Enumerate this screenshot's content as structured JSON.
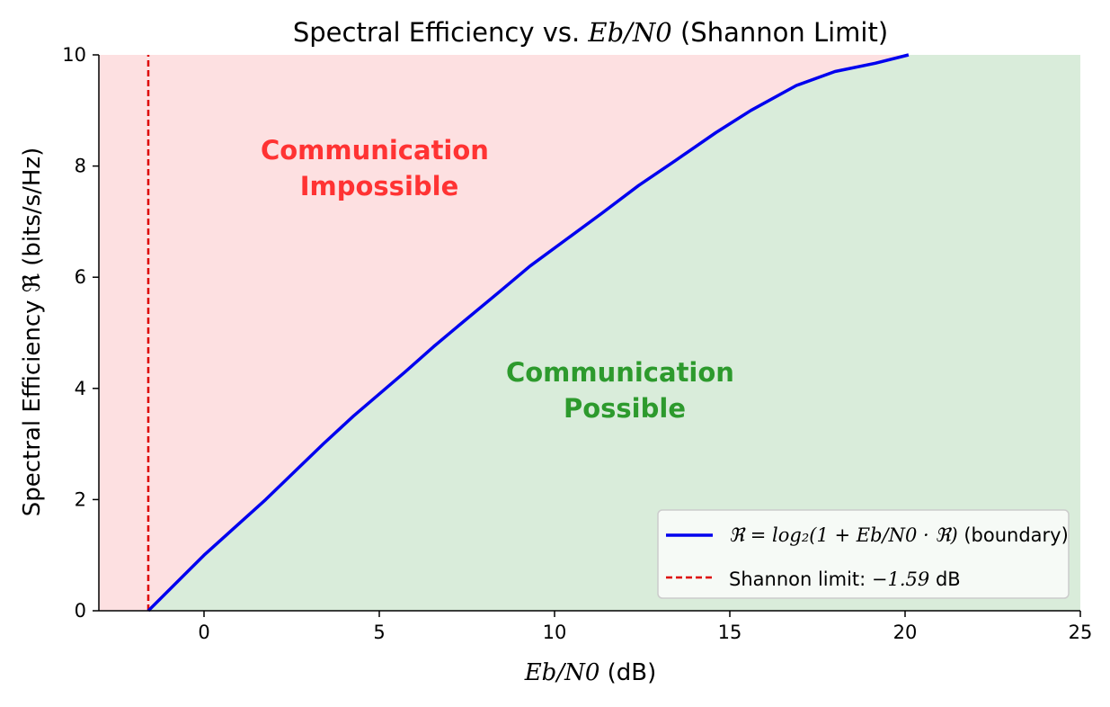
{
  "chart_data": {
    "type": "line",
    "title_prefix": "Spectral Efficiency vs. ",
    "title_math": "Eb/N0",
    "title_suffix": " (Shannon Limit)",
    "xlabel_math": "Eb/N0",
    "xlabel_suffix": " (dB)",
    "ylabel": "Spectral Efficiency ℜ (bits/s/Hz)",
    "xlim": [
      -3,
      25
    ],
    "ylim": [
      0,
      10
    ],
    "xticks": [
      0,
      5,
      10,
      15,
      20,
      25
    ],
    "yticks": [
      0,
      2,
      4,
      6,
      8,
      10
    ],
    "grid": false,
    "legend_position": "lower-right",
    "regions": [
      {
        "label_line1": "Communication",
        "label_line2": "Impossible",
        "color": "#ff3333",
        "fill": "#fde0e1"
      },
      {
        "label_line1": "Communication",
        "label_line2": "Possible",
        "color": "#2d9a2d",
        "fill": "#d9ecda"
      }
    ],
    "series": [
      {
        "name": "ℜ = log₂(1 + Eb/N0 · ℜ) (boundary)",
        "color": "#0000ee",
        "style": "solid",
        "x": [
          -1.59,
          0,
          1.76,
          3.4,
          4.26,
          5.74,
          6.55,
          7.4,
          8.45,
          9.3,
          10.38,
          11.35,
          12.4,
          13.45,
          14.6,
          15.6,
          16.9,
          18,
          19.15,
          20.1
        ],
        "y": [
          0,
          1,
          2,
          3,
          3.5,
          4.3,
          4.75,
          5.2,
          5.75,
          6.2,
          6.7,
          7.15,
          7.65,
          8.1,
          8.6,
          9.0,
          9.45,
          9.7,
          9.85,
          10
        ]
      },
      {
        "name": "Shannon limit: −1.59 dB",
        "color": "#dd0000",
        "style": "dashed",
        "x": [
          -1.59,
          -1.59
        ],
        "y": [
          0,
          10
        ]
      }
    ],
    "legend": {
      "entry1_math": "ℜ = log₂(1 + Eb/N0 · ℜ)",
      "entry1_suffix": " (boundary)",
      "entry2_prefix": "Shannon limit: ",
      "entry2_math": "−1.59",
      "entry2_suffix": " dB"
    }
  }
}
